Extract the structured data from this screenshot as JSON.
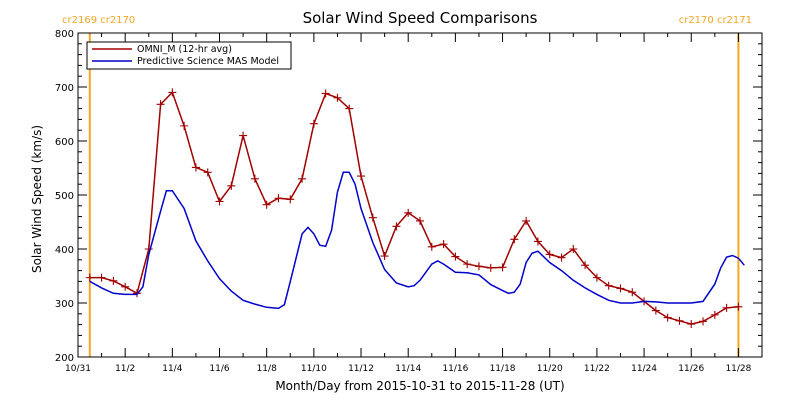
{
  "chart_data": {
    "type": "line",
    "title": "Solar Wind Speed Comparisons",
    "xlabel": "Month/Day from 2015-10-31 to 2015-11-28 (UT)",
    "ylabel": "Solar Wind Speed (km/s)",
    "xlim": [
      "2015-10-31",
      "2015-11-29"
    ],
    "ylim": [
      200,
      800
    ],
    "y_ticks": [
      200,
      300,
      400,
      500,
      600,
      700,
      800
    ],
    "x_ticks": [
      {
        "date": "2015-10-31",
        "label": "10/31"
      },
      {
        "date": "2015-11-02",
        "label": "11/2"
      },
      {
        "date": "2015-11-04",
        "label": "11/4"
      },
      {
        "date": "2015-11-06",
        "label": "11/6"
      },
      {
        "date": "2015-11-08",
        "label": "11/8"
      },
      {
        "date": "2015-11-10",
        "label": "11/10"
      },
      {
        "date": "2015-11-12",
        "label": "11/12"
      },
      {
        "date": "2015-11-14",
        "label": "11/14"
      },
      {
        "date": "2015-11-16",
        "label": "11/16"
      },
      {
        "date": "2015-11-18",
        "label": "11/18"
      },
      {
        "date": "2015-11-20",
        "label": "11/20"
      },
      {
        "date": "2015-11-22",
        "label": "11/22"
      },
      {
        "date": "2015-11-24",
        "label": "11/24"
      },
      {
        "date": "2015-11-26",
        "label": "11/26"
      },
      {
        "date": "2015-11-28",
        "label": "11/28"
      }
    ],
    "grid": false,
    "legend_position": "top-left",
    "carrington_markers": [
      {
        "date": "2015-10-31T12:00",
        "label": "cr2169 cr2170",
        "color": "#f5a623"
      },
      {
        "date": "2015-11-28T00:00",
        "label": "cr2170 cr2171",
        "color": "#f5a623"
      }
    ],
    "series": [
      {
        "name": "OMNI_M (12-hr avg)",
        "color": "#a00000",
        "marker": "plus",
        "points": [
          [
            "2015-10-31T12:00",
            347
          ],
          [
            "2015-11-01T00:00",
            347
          ],
          [
            "2015-11-01T12:00",
            341
          ],
          [
            "2015-11-02T00:00",
            330
          ],
          [
            "2015-11-02T12:00",
            318
          ],
          [
            "2015-11-03T00:00",
            400
          ],
          [
            "2015-11-03T12:00",
            668
          ],
          [
            "2015-11-04T00:00",
            690
          ],
          [
            "2015-11-04T12:00",
            628
          ],
          [
            "2015-11-05T00:00",
            551
          ],
          [
            "2015-11-05T12:00",
            542
          ],
          [
            "2015-11-06T00:00",
            488
          ],
          [
            "2015-11-06T12:00",
            517
          ],
          [
            "2015-11-07T00:00",
            610
          ],
          [
            "2015-11-07T12:00",
            530
          ],
          [
            "2015-11-08T00:00",
            482
          ],
          [
            "2015-11-08T12:00",
            494
          ],
          [
            "2015-11-09T00:00",
            492
          ],
          [
            "2015-11-09T12:00",
            530
          ],
          [
            "2015-11-10T00:00",
            632
          ],
          [
            "2015-11-10T12:00",
            688
          ],
          [
            "2015-11-11T00:00",
            680
          ],
          [
            "2015-11-11T12:00",
            660
          ],
          [
            "2015-11-12T00:00",
            535
          ],
          [
            "2015-11-12T12:00",
            458
          ],
          [
            "2015-11-13T00:00",
            387
          ],
          [
            "2015-11-13T12:00",
            442
          ],
          [
            "2015-11-14T00:00",
            467
          ],
          [
            "2015-11-14T12:00",
            452
          ],
          [
            "2015-11-15T00:00",
            404
          ],
          [
            "2015-11-15T12:00",
            409
          ],
          [
            "2015-11-16T00:00",
            386
          ],
          [
            "2015-11-16T12:00",
            372
          ],
          [
            "2015-11-17T00:00",
            368
          ],
          [
            "2015-11-17T12:00",
            365
          ],
          [
            "2015-11-18T00:00",
            366
          ],
          [
            "2015-11-18T12:00",
            418
          ],
          [
            "2015-11-19T00:00",
            452
          ],
          [
            "2015-11-19T12:00",
            414
          ],
          [
            "2015-11-20T00:00",
            390
          ],
          [
            "2015-11-20T12:00",
            384
          ],
          [
            "2015-11-21T00:00",
            400
          ],
          [
            "2015-11-21T12:00",
            370
          ],
          [
            "2015-11-22T00:00",
            347
          ],
          [
            "2015-11-22T12:00",
            332
          ],
          [
            "2015-11-23T00:00",
            327
          ],
          [
            "2015-11-23T12:00",
            320
          ],
          [
            "2015-11-24T00:00",
            303
          ],
          [
            "2015-11-24T12:00",
            286
          ],
          [
            "2015-11-25T00:00",
            273
          ],
          [
            "2015-11-25T12:00",
            267
          ],
          [
            "2015-11-26T00:00",
            261
          ],
          [
            "2015-11-26T12:00",
            266
          ],
          [
            "2015-11-27T00:00",
            278
          ],
          [
            "2015-11-27T12:00",
            291
          ],
          [
            "2015-11-28T00:00",
            293
          ]
        ]
      },
      {
        "name": "Predictive Science MAS Model",
        "color": "#0000cc",
        "marker": "none",
        "points": [
          [
            "2015-10-31T12:00",
            340
          ],
          [
            "2015-11-01T00:00",
            328
          ],
          [
            "2015-11-01T12:00",
            318
          ],
          [
            "2015-11-02T00:00",
            316
          ],
          [
            "2015-11-02T12:00",
            316
          ],
          [
            "2015-11-02T18:00",
            330
          ],
          [
            "2015-11-03T00:00",
            390
          ],
          [
            "2015-11-03T12:00",
            470
          ],
          [
            "2015-11-03T18:00",
            508
          ],
          [
            "2015-11-04T00:00",
            508
          ],
          [
            "2015-11-04T12:00",
            475
          ],
          [
            "2015-11-05T00:00",
            415
          ],
          [
            "2015-11-05T12:00",
            378
          ],
          [
            "2015-11-06T00:00",
            345
          ],
          [
            "2015-11-06T12:00",
            322
          ],
          [
            "2015-11-07T00:00",
            305
          ],
          [
            "2015-11-07T12:00",
            298
          ],
          [
            "2015-11-08T00:00",
            292
          ],
          [
            "2015-11-08T12:00",
            290
          ],
          [
            "2015-11-08T18:00",
            297
          ],
          [
            "2015-11-09T00:00",
            340
          ],
          [
            "2015-11-09T12:00",
            428
          ],
          [
            "2015-11-09T18:00",
            440
          ],
          [
            "2015-11-10T00:00",
            428
          ],
          [
            "2015-11-10T06:00",
            407
          ],
          [
            "2015-11-10T12:00",
            405
          ],
          [
            "2015-11-10T18:00",
            435
          ],
          [
            "2015-11-11T00:00",
            505
          ],
          [
            "2015-11-11T06:00",
            542
          ],
          [
            "2015-11-11T12:00",
            542
          ],
          [
            "2015-11-11T18:00",
            520
          ],
          [
            "2015-11-12T00:00",
            475
          ],
          [
            "2015-11-12T12:00",
            412
          ],
          [
            "2015-11-13T00:00",
            362
          ],
          [
            "2015-11-13T12:00",
            337
          ],
          [
            "2015-11-14T00:00",
            330
          ],
          [
            "2015-11-14T06:00",
            332
          ],
          [
            "2015-11-14T12:00",
            342
          ],
          [
            "2015-11-15T00:00",
            372
          ],
          [
            "2015-11-15T06:00",
            378
          ],
          [
            "2015-11-15T12:00",
            372
          ],
          [
            "2015-11-16T00:00",
            357
          ],
          [
            "2015-11-16T12:00",
            356
          ],
          [
            "2015-11-17T00:00",
            352
          ],
          [
            "2015-11-17T12:00",
            334
          ],
          [
            "2015-11-18T00:00",
            323
          ],
          [
            "2015-11-18T06:00",
            318
          ],
          [
            "2015-11-18T12:00",
            320
          ],
          [
            "2015-11-18T18:00",
            335
          ],
          [
            "2015-11-19T00:00",
            375
          ],
          [
            "2015-11-19T06:00",
            392
          ],
          [
            "2015-11-19T12:00",
            396
          ],
          [
            "2015-11-20T00:00",
            375
          ],
          [
            "2015-11-20T12:00",
            360
          ],
          [
            "2015-11-21T00:00",
            342
          ],
          [
            "2015-11-21T12:00",
            328
          ],
          [
            "2015-11-22T00:00",
            316
          ],
          [
            "2015-11-22T12:00",
            305
          ],
          [
            "2015-11-23T00:00",
            300
          ],
          [
            "2015-11-23T12:00",
            300
          ],
          [
            "2015-11-24T00:00",
            303
          ],
          [
            "2015-11-24T12:00",
            302
          ],
          [
            "2015-11-25T00:00",
            300
          ],
          [
            "2015-11-25T12:00",
            300
          ],
          [
            "2015-11-26T00:00",
            300
          ],
          [
            "2015-11-26T12:00",
            303
          ],
          [
            "2015-11-27T00:00",
            335
          ],
          [
            "2015-11-27T06:00",
            365
          ],
          [
            "2015-11-27T12:00",
            385
          ],
          [
            "2015-11-27T18:00",
            388
          ],
          [
            "2015-11-28T00:00",
            383
          ],
          [
            "2015-11-28T06:00",
            370
          ]
        ]
      }
    ]
  }
}
